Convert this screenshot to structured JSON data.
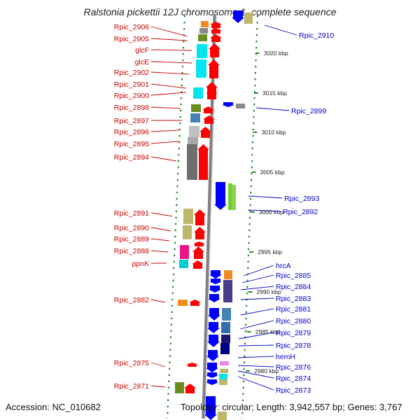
{
  "title": "Ralstonia pickettii 12J chromosome 1, complete sequence",
  "footer": {
    "accession": "Accession: NC_010682",
    "topology": "Topology: circular; Length: 3,942,557 bp; Genes: 3,767"
  },
  "colors": {
    "forward_arrow": "#ff0000",
    "reverse_arrow": "#0000ff",
    "left_label": "#cc0000",
    "right_label": "#0000cc",
    "backbone": "#808080",
    "tick": "#2e8b2e"
  },
  "scale_ticks": [
    "3020 kbp",
    "3015 kbp",
    "3010 kbp",
    "3005 kbp",
    "3000 kbp",
    "2995 kbp",
    "2990 kbp",
    "2985 kbp",
    "2980 kbp"
  ],
  "left_labels": [
    "Rpic_2906",
    "Rpic_2905",
    "glcF",
    "glcE",
    "Rpic_2902",
    "Rpic_2901",
    "Rpic_2900",
    "Rpic_2898",
    "Rpic_2897",
    "Rpic_2896",
    "Rpic_2895",
    "Rpic_2894",
    "Rpic_2891",
    "Rpic_2890",
    "Rpic_2889",
    "Rpic_2888",
    "ppnK",
    "Rpic_2882",
    "Rpic_2875",
    "Rpic_2871"
  ],
  "right_labels": [
    "Rpic_2910",
    "Rpic_2899",
    "Rpic_2893",
    "Rpic_2892",
    "hrcA",
    "Rpic_2885",
    "Rpic_2884",
    "Rpic_2883",
    "Rpic_2881",
    "Rpic_2880",
    "Rpic_2879",
    "Rpic_2878",
    "hemH",
    "Rpic_2876",
    "Rpic_2874",
    "Rpic_2873"
  ]
}
